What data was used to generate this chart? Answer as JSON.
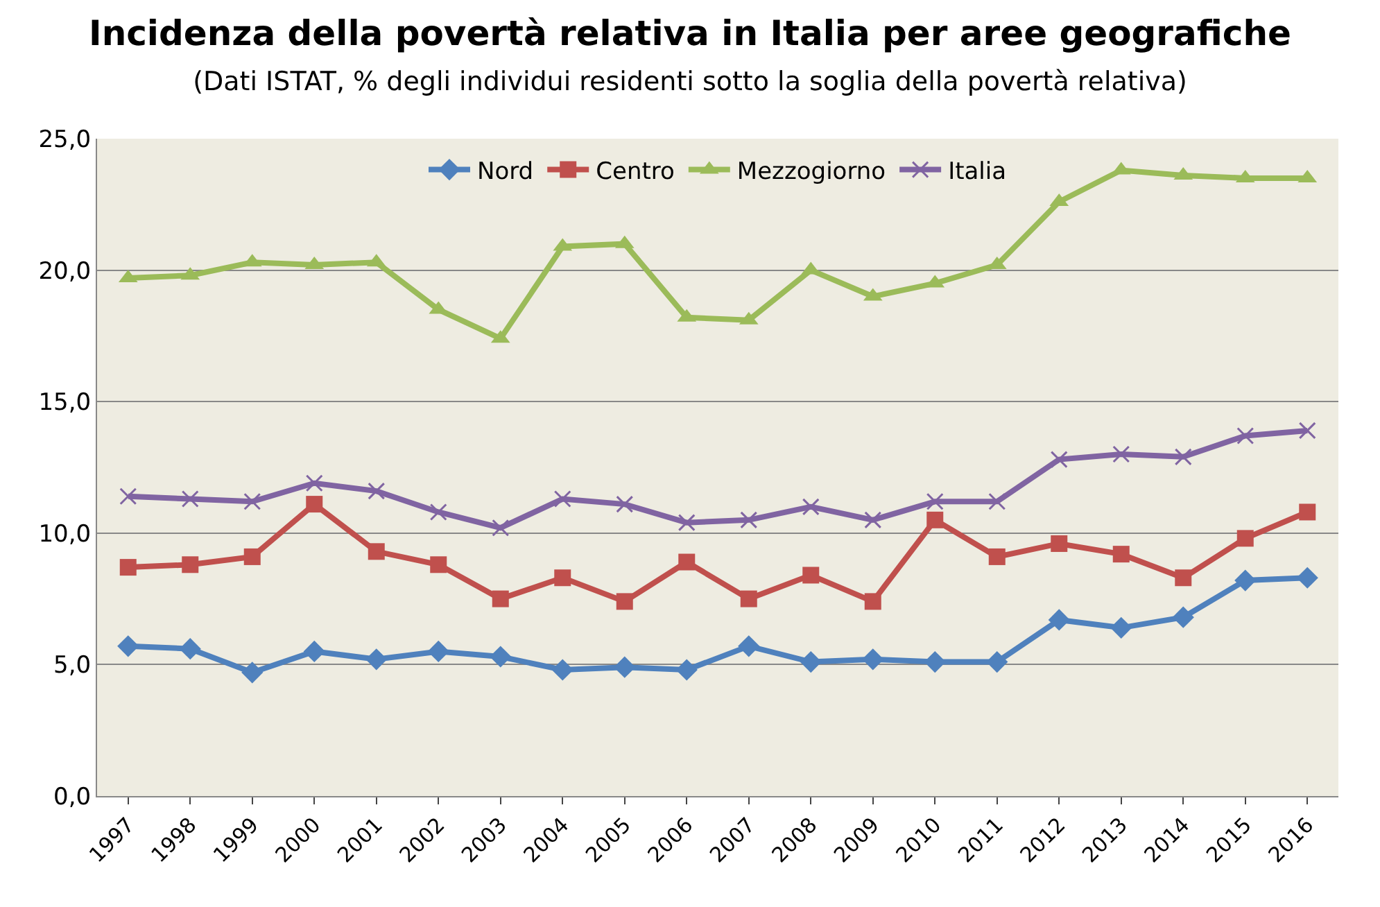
{
  "chart_data": {
    "type": "line",
    "title": "Incidenza della povertà relativa in Italia per aree geografiche",
    "subtitle": "(Dati ISTAT, % degli individui residenti sotto la soglia della povertà relativa)",
    "categories": [
      "1997",
      "1998",
      "1999",
      "2000",
      "2001",
      "2002",
      "2003",
      "2004",
      "2005",
      "2006",
      "2007",
      "2008",
      "2009",
      "2010",
      "2011",
      "2012",
      "2013",
      "2014",
      "2015",
      "2016"
    ],
    "series": [
      {
        "name": "Nord",
        "color": "#4f81bd",
        "marker": "diamond",
        "values": [
          5.7,
          5.6,
          4.7,
          5.5,
          5.2,
          5.5,
          5.3,
          4.8,
          4.9,
          4.8,
          5.7,
          5.1,
          5.2,
          5.1,
          5.1,
          6.7,
          6.4,
          6.8,
          8.2,
          8.3
        ]
      },
      {
        "name": "Centro",
        "color": "#c0504d",
        "marker": "square",
        "values": [
          8.7,
          8.8,
          9.1,
          11.1,
          9.3,
          8.8,
          7.5,
          8.3,
          7.4,
          8.9,
          7.5,
          8.4,
          7.4,
          10.5,
          9.1,
          9.6,
          9.2,
          8.3,
          9.8,
          10.8
        ]
      },
      {
        "name": "Mezzogiorno",
        "color": "#9bbb59",
        "marker": "triangle",
        "values": [
          19.7,
          19.8,
          20.3,
          20.2,
          20.3,
          18.5,
          17.4,
          20.9,
          21.0,
          18.2,
          18.1,
          20.0,
          19.0,
          19.5,
          20.2,
          22.6,
          23.8,
          23.6,
          23.5,
          23.5
        ]
      },
      {
        "name": "Italia",
        "color": "#8064a2",
        "marker": "cross",
        "values": [
          11.4,
          11.3,
          11.2,
          11.9,
          11.6,
          10.8,
          10.2,
          11.3,
          11.1,
          10.4,
          10.5,
          11.0,
          10.5,
          11.2,
          11.2,
          12.8,
          13.0,
          12.9,
          13.7,
          13.9
        ]
      }
    ],
    "ylim": [
      0,
      25
    ],
    "yticks": [
      {
        "value": 0,
        "label": "0,0"
      },
      {
        "value": 5,
        "label": "5,0"
      },
      {
        "value": 10,
        "label": "10,0"
      },
      {
        "value": 15,
        "label": "15,0"
      },
      {
        "value": 20,
        "label": "20,0"
      },
      {
        "value": 25,
        "label": "25,0"
      }
    ],
    "grid": "y",
    "legend": "top",
    "line_style": "solid"
  }
}
